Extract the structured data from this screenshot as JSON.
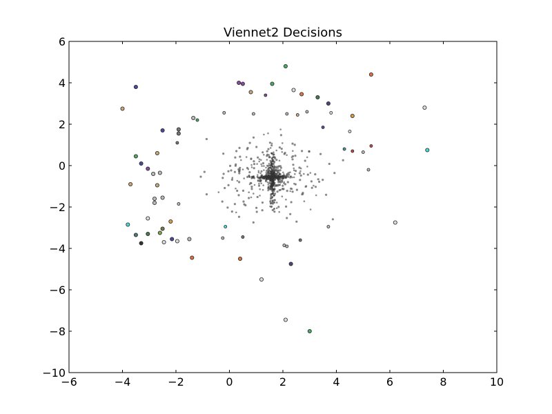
{
  "chart_data": {
    "type": "scatter",
    "title": "Viennet2 Decisions",
    "xlabel": "",
    "ylabel": "",
    "xlim": [
      -6,
      10
    ],
    "ylim": [
      -10,
      6
    ],
    "grid": false,
    "legend": "none",
    "x_ticks": [
      -6,
      -4,
      -2,
      0,
      2,
      4,
      6,
      8,
      10
    ],
    "y_ticks": [
      -10,
      -8,
      -6,
      -4,
      -2,
      0,
      2,
      4,
      6
    ],
    "dense_cluster": {
      "center": [
        1.6,
        -0.55
      ],
      "approx_points": 700,
      "color": "#333333"
    },
    "points": [
      {
        "x": 2.1,
        "y": 4.8,
        "color": "#4daa6a"
      },
      {
        "x": 5.3,
        "y": 4.4,
        "color": "#d9744a"
      },
      {
        "x": -3.5,
        "y": 3.8,
        "color": "#4a4aa0"
      },
      {
        "x": 0.35,
        "y": 4.0,
        "color": "#8a4aa0"
      },
      {
        "x": 0.5,
        "y": 3.95,
        "color": "#8a4aa0"
      },
      {
        "x": 1.6,
        "y": 3.95,
        "color": "#4daa6a"
      },
      {
        "x": -4.0,
        "y": 2.75,
        "color": "#c7a878"
      },
      {
        "x": 7.3,
        "y": 2.8,
        "color": "#dddddd"
      },
      {
        "x": 7.4,
        "y": 0.75,
        "color": "#4dd9d9"
      },
      {
        "x": 4.6,
        "y": 2.4,
        "color": "#d99a4a"
      },
      {
        "x": 5.3,
        "y": 0.95,
        "color": "#c84a4a"
      },
      {
        "x": 2.7,
        "y": 3.45,
        "color": "#d97a4a"
      },
      {
        "x": 3.3,
        "y": 3.3,
        "color": "#4a7a4a"
      },
      {
        "x": 3.7,
        "y": 3.0,
        "color": "#4a4a7a"
      },
      {
        "x": 2.4,
        "y": 3.65,
        "color": "#dddddd"
      },
      {
        "x": 3.8,
        "y": 2.55,
        "color": "#dddddd"
      },
      {
        "x": 3.5,
        "y": 1.85,
        "color": "#6a4aa0"
      },
      {
        "x": 4.3,
        "y": 0.8,
        "color": "#4d9a9a"
      },
      {
        "x": 4.6,
        "y": 0.7,
        "color": "#c84a4a"
      },
      {
        "x": 5.0,
        "y": 0.65,
        "color": "#bbbbbb"
      },
      {
        "x": 5.2,
        "y": -0.2,
        "color": "#bbbbbb"
      },
      {
        "x": 4.5,
        "y": 1.65,
        "color": "#dddddd"
      },
      {
        "x": -3.5,
        "y": 0.45,
        "color": "#4daa6a"
      },
      {
        "x": -3.3,
        "y": 0.1,
        "color": "#4a4aa0"
      },
      {
        "x": -3.05,
        "y": -0.15,
        "color": "#8a4aa0"
      },
      {
        "x": -2.7,
        "y": 0.6,
        "color": "#c7a878"
      },
      {
        "x": -2.5,
        "y": 1.7,
        "color": "#4a4aa0"
      },
      {
        "x": -3.7,
        "y": -0.9,
        "color": "#c7a878"
      },
      {
        "x": -2.7,
        "y": -0.95,
        "color": "#c7a878"
      },
      {
        "x": -3.8,
        "y": -2.85,
        "color": "#4dd9d9"
      },
      {
        "x": -3.5,
        "y": -3.35,
        "color": "#4a7a7a"
      },
      {
        "x": -3.05,
        "y": -3.3,
        "color": "#4a7a4a"
      },
      {
        "x": -2.6,
        "y": -3.25,
        "color": "#7aaa4a"
      },
      {
        "x": -2.5,
        "y": -3.05,
        "color": "#7a7a4a"
      },
      {
        "x": -3.3,
        "y": -3.75,
        "color": "#333333"
      },
      {
        "x": -2.45,
        "y": -3.7,
        "color": "#dddddd"
      },
      {
        "x": -2.15,
        "y": -3.55,
        "color": "#4a4aa0"
      },
      {
        "x": -1.95,
        "y": -3.65,
        "color": "#dddddd"
      },
      {
        "x": -1.5,
        "y": -3.55,
        "color": "#bbbbbb"
      },
      {
        "x": -2.2,
        "y": -2.7,
        "color": "#d9a04a"
      },
      {
        "x": -3.05,
        "y": -2.55,
        "color": "#dddddd"
      },
      {
        "x": -1.4,
        "y": -4.45,
        "color": "#d9744a"
      },
      {
        "x": 0.4,
        "y": -4.5,
        "color": "#d9744a"
      },
      {
        "x": 1.2,
        "y": -5.5,
        "color": "#dddddd"
      },
      {
        "x": 2.1,
        "y": -7.45,
        "color": "#dddddd"
      },
      {
        "x": 3.0,
        "y": -8.0,
        "color": "#4daa6a"
      },
      {
        "x": 2.3,
        "y": -4.75,
        "color": "#4a4a7a"
      },
      {
        "x": 6.2,
        "y": -2.75,
        "color": "#dddddd"
      },
      {
        "x": 3.7,
        "y": -2.95,
        "color": "#bbbbbb"
      },
      {
        "x": -0.15,
        "y": -2.95,
        "color": "#4dd9d9"
      },
      {
        "x": 0.8,
        "y": 3.55,
        "color": "#c7a878"
      },
      {
        "x": 1.35,
        "y": 3.4,
        "color": "#8a4aa0"
      },
      {
        "x": -1.2,
        "y": 2.2,
        "color": "#4daa6a"
      },
      {
        "x": -1.35,
        "y": 2.3,
        "color": "#bbbbbb"
      },
      {
        "x": -2.8,
        "y": -1.6,
        "color": "#bbbbbb"
      },
      {
        "x": -2.8,
        "y": -1.8,
        "color": "#bbbbbb"
      },
      {
        "x": -2.5,
        "y": -1.55,
        "color": "#bbbbbb"
      },
      {
        "x": -1.9,
        "y": -1.85,
        "color": "#bbbbbb"
      },
      {
        "x": -2.6,
        "y": -0.35,
        "color": "#bbbbbb"
      },
      {
        "x": -2.85,
        "y": -0.4,
        "color": "#bbbbbb"
      },
      {
        "x": 2.15,
        "y": 2.5,
        "color": "#bbbbbb"
      },
      {
        "x": 2.55,
        "y": 2.45,
        "color": "#c7a878"
      },
      {
        "x": 2.9,
        "y": 2.6,
        "color": "#bbbbbb"
      },
      {
        "x": -0.2,
        "y": 2.55,
        "color": "#bbbbbb"
      },
      {
        "x": 0.9,
        "y": 2.5,
        "color": "#bbbbbb"
      },
      {
        "x": -1.9,
        "y": 1.75,
        "color": "#777777"
      },
      {
        "x": -1.9,
        "y": 1.55,
        "color": "#777777"
      },
      {
        "x": -1.95,
        "y": 1.1,
        "color": "#777777"
      },
      {
        "x": 2.05,
        "y": -3.85,
        "color": "#bbbbbb"
      },
      {
        "x": 2.15,
        "y": -3.9,
        "color": "#bbbbbb"
      },
      {
        "x": 2.65,
        "y": -3.6,
        "color": "#777777"
      },
      {
        "x": 0.5,
        "y": -3.45,
        "color": "#777777"
      },
      {
        "x": -0.25,
        "y": -3.5,
        "color": "#bbbbbb"
      }
    ]
  }
}
